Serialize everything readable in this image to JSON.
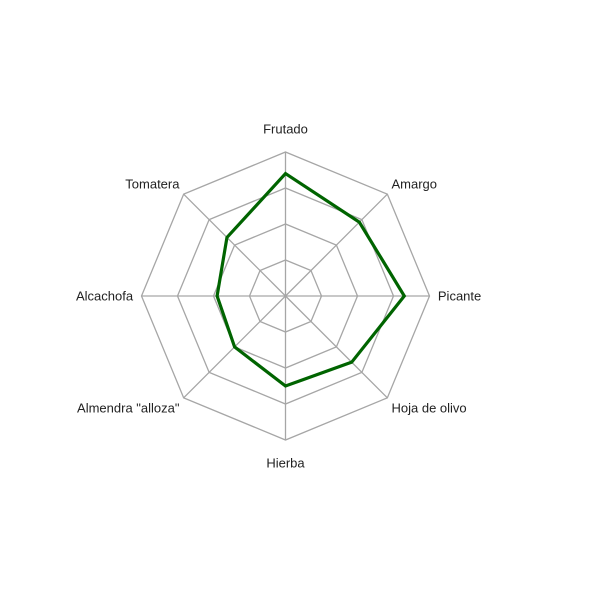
{
  "chart_data": {
    "type": "radar",
    "title": "",
    "categories": [
      "Frutado",
      "Amargo",
      "Picante",
      "Hoja de olivo",
      "Hierba",
      "Almendra \"alloza\"",
      "Alcachofa",
      "Tomatera"
    ],
    "rlim": [
      0,
      4
    ],
    "rings": [
      1,
      2,
      3,
      4
    ],
    "grid": true,
    "legend": "none",
    "series": [
      {
        "values": [
          3.4,
          2.9,
          3.3,
          2.6,
          2.5,
          2.0,
          1.9,
          2.3
        ],
        "color": "#006400"
      }
    ],
    "grid_color": "#a6a6a6"
  }
}
